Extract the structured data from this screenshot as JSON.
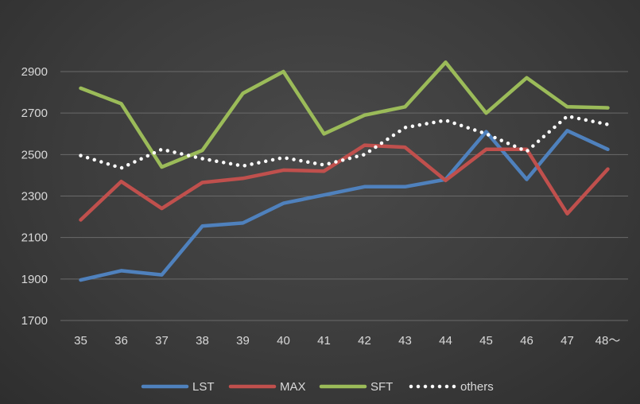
{
  "chart_data": {
    "type": "line",
    "categories": [
      "35",
      "36",
      "37",
      "38",
      "39",
      "40",
      "41",
      "42",
      "43",
      "44",
      "45",
      "46",
      "47",
      "48～"
    ],
    "ylim": [
      1700,
      2900
    ],
    "yticks": [
      1700,
      1900,
      2100,
      2300,
      2500,
      2700,
      2900
    ],
    "grid": true,
    "legend_position": "bottom",
    "series": [
      {
        "name": "LST",
        "color": "#4f81bd",
        "style": "solid",
        "values": [
          1895,
          1940,
          1920,
          2155,
          2170,
          2265,
          2305,
          2345,
          2345,
          2380,
          2610,
          2380,
          2615,
          2525
        ]
      },
      {
        "name": "MAX",
        "color": "#c0504d",
        "style": "solid",
        "values": [
          2185,
          2370,
          2240,
          2365,
          2385,
          2425,
          2420,
          2545,
          2535,
          2375,
          2525,
          2525,
          2215,
          2430
        ]
      },
      {
        "name": "SFT",
        "color": "#9bbb59",
        "style": "solid",
        "values": [
          2820,
          2745,
          2440,
          2520,
          2795,
          2900,
          2600,
          2690,
          2730,
          2945,
          2700,
          2870,
          2730,
          2725
        ]
      },
      {
        "name": "others",
        "color": "#ffffff",
        "style": "dotted",
        "values": [
          2495,
          2435,
          2525,
          2480,
          2445,
          2485,
          2450,
          2500,
          2630,
          2665,
          2600,
          2515,
          2685,
          2645
        ]
      }
    ]
  }
}
